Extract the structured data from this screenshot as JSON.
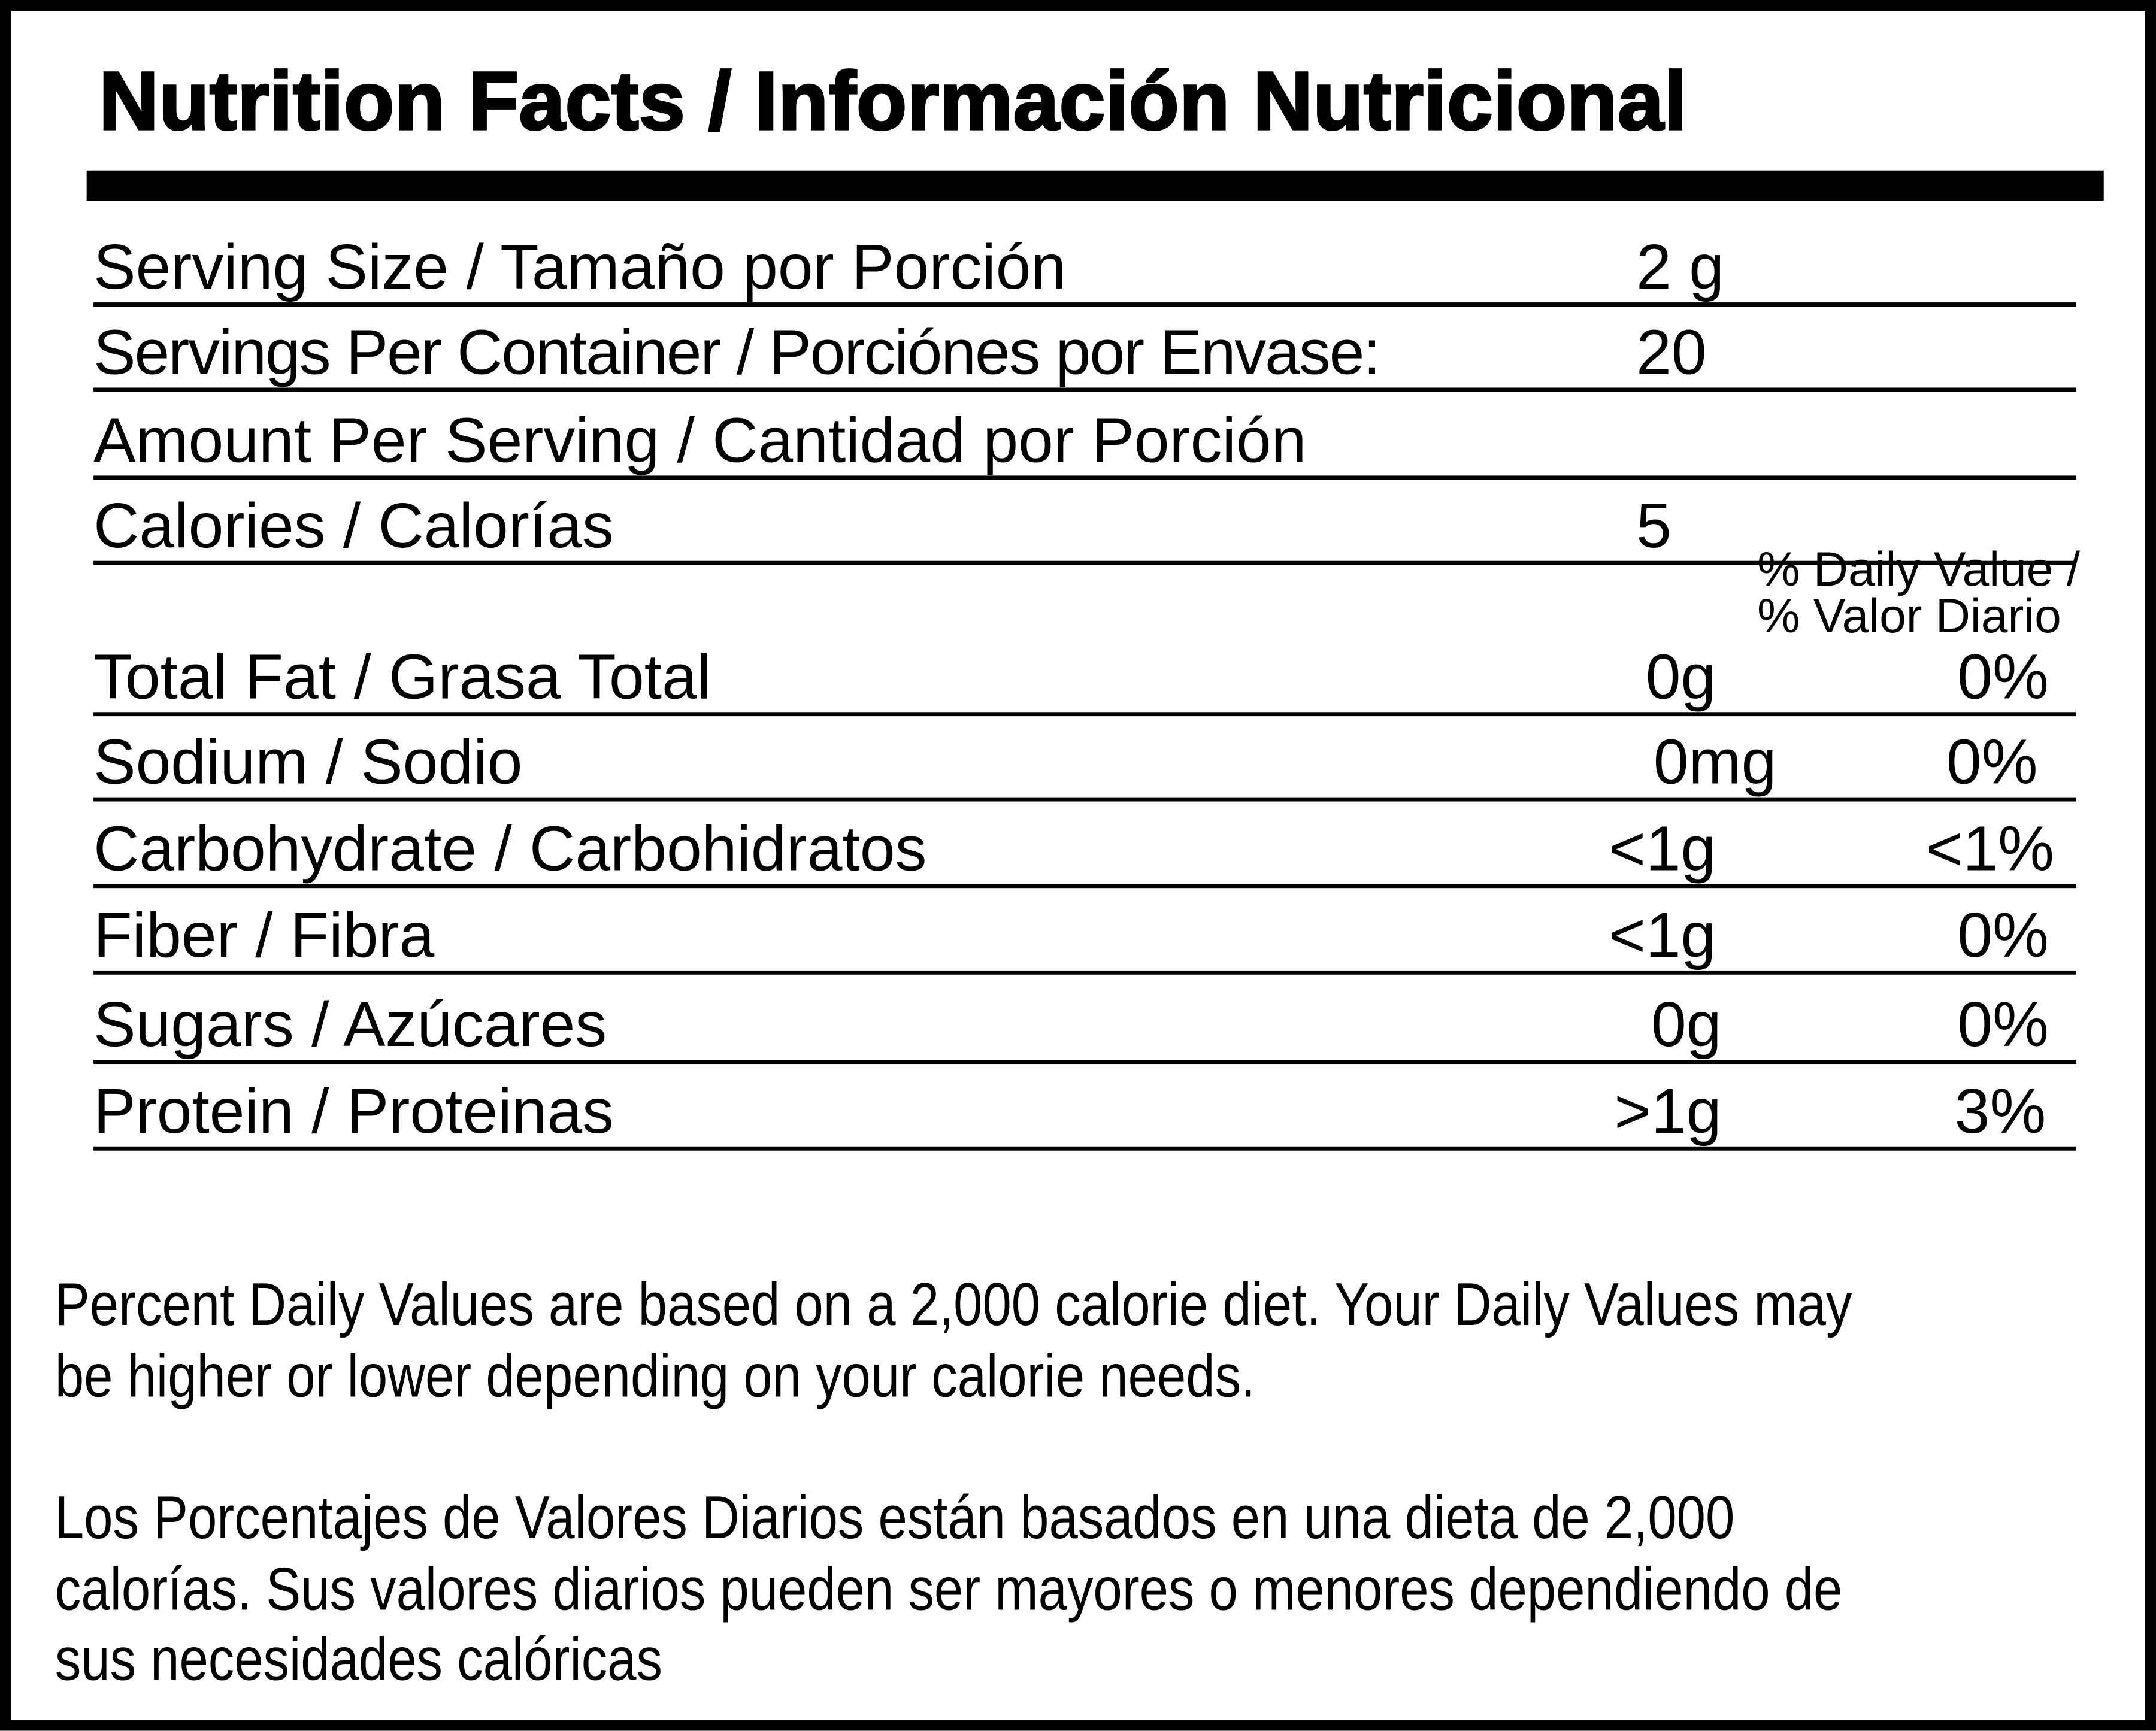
{
  "title": "Nutrition Facts / Información Nutricional",
  "serving": [
    {
      "label": "Serving Size / Tamaño por Porción",
      "value": "2 g"
    },
    {
      "label": "Servings Per Container / Porciónes por Envase:",
      "value": "20"
    },
    {
      "label": "Amount Per Serving / Cantidad por Porción",
      "value": ""
    },
    {
      "label": "Calories / Calorías",
      "value": "5"
    }
  ],
  "daily_value_header": [
    "% Daily Value /",
    "% Valor Diario"
  ],
  "nutrients": [
    {
      "label": "Total Fat / Grasa Total",
      "amount": "0g",
      "percent": "0%"
    },
    {
      "label": "Sodium / Sodio",
      "amount": "0mg",
      "percent": "0%"
    },
    {
      "label": "Carbohydrate / Carbohidratos",
      "amount": "<1g",
      "percent": "<1%"
    },
    {
      "label": "Fiber / Fibra",
      "amount": "<1g",
      "percent": "0%"
    },
    {
      "label": "Sugars / Azúcares",
      "amount": "0g",
      "percent": "0%"
    },
    {
      "label": "Protein / Proteinas",
      "amount": ">1g",
      "percent": "3%"
    }
  ],
  "footnote_en": [
    "Percent Daily Values are based on a 2,000 calorie diet. Your Daily Values may",
    "be higher or lower depending on your calorie needs."
  ],
  "footnote_es": [
    "Los Porcentajes de Valores Diarios están basados en una dieta de 2,000",
    "calorías. Sus valores diarios pueden ser mayores o menores dependiendo de",
    "sus necesidades calóricas"
  ]
}
